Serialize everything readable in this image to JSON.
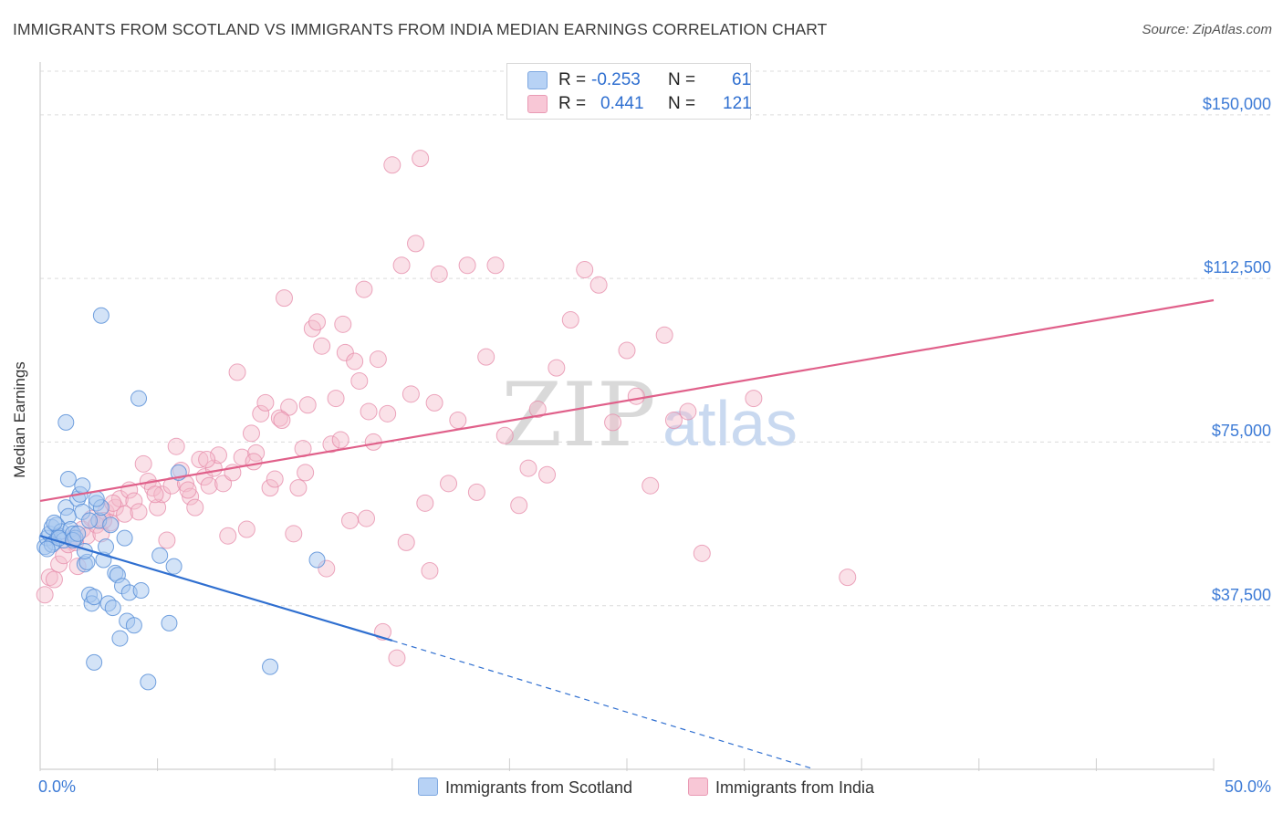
{
  "title": "IMMIGRANTS FROM SCOTLAND VS IMMIGRANTS FROM INDIA MEDIAN EARNINGS CORRELATION CHART",
  "source": "Source: ZipAtlas.com",
  "watermark": {
    "zip": "ZIP",
    "atlas": "atlas"
  },
  "colors": {
    "scotland_fill": "#a8c8f0",
    "scotland_stroke": "#5a90d8",
    "scotland_line": "#2f6fd0",
    "india_fill": "#f5bccd",
    "india_stroke": "#e68aa8",
    "india_line": "#e0608a",
    "tick_text": "#3d7bd6"
  },
  "legend": {
    "rows": [
      {
        "r_label": "R =",
        "r_value": "-0.253",
        "n_label": "N =",
        "n_value": "61"
      },
      {
        "r_label": "R =",
        "r_value": "0.441",
        "n_label": "N =",
        "n_value": "121"
      }
    ]
  },
  "bottom_legend": {
    "scotland": "Immigrants from Scotland",
    "india": "Immigrants from India"
  },
  "chart_data": {
    "type": "scatter",
    "xlabel": "",
    "ylabel": "Median Earnings",
    "xlim": [
      0,
      50
    ],
    "ylim": [
      0,
      160000
    ],
    "x_tick_labels": [
      "0.0%",
      "50.0%"
    ],
    "y_ticks": [
      37500,
      75000,
      112500,
      150000
    ],
    "y_tick_labels": [
      "$37,500",
      "$75,000",
      "$112,500",
      "$150,000"
    ],
    "grid": true,
    "series": [
      {
        "name": "Immigrants from Scotland",
        "r": -0.253,
        "n": 61,
        "trend": {
          "x0": 0,
          "y0": 53500,
          "x1": 15,
          "y1": 29500,
          "dash_to_x": 33,
          "dash_to_y": 0
        },
        "points": [
          [
            0.2,
            51000
          ],
          [
            0.3,
            53000
          ],
          [
            0.4,
            54000
          ],
          [
            0.5,
            55500
          ],
          [
            0.6,
            52000
          ],
          [
            0.7,
            56000
          ],
          [
            0.8,
            53500
          ],
          [
            0.9,
            54500
          ],
          [
            1.0,
            52500
          ],
          [
            1.1,
            60000
          ],
          [
            1.2,
            58000
          ],
          [
            1.3,
            55000
          ],
          [
            1.4,
            54000
          ],
          [
            1.5,
            53000
          ],
          [
            1.6,
            62000
          ],
          [
            1.7,
            63000
          ],
          [
            1.8,
            59000
          ],
          [
            1.9,
            47000
          ],
          [
            2.0,
            47500
          ],
          [
            2.1,
            40000
          ],
          [
            2.2,
            38000
          ],
          [
            2.3,
            39500
          ],
          [
            2.4,
            61000
          ],
          [
            2.5,
            57000
          ],
          [
            2.6,
            60000
          ],
          [
            2.7,
            48000
          ],
          [
            2.8,
            51000
          ],
          [
            2.9,
            38000
          ],
          [
            3.0,
            56000
          ],
          [
            3.1,
            37000
          ],
          [
            3.2,
            45000
          ],
          [
            3.3,
            44500
          ],
          [
            3.4,
            30000
          ],
          [
            3.5,
            42000
          ],
          [
            3.6,
            53000
          ],
          [
            3.7,
            34000
          ],
          [
            3.8,
            40500
          ],
          [
            4.0,
            33000
          ],
          [
            4.3,
            41000
          ],
          [
            4.6,
            20000
          ],
          [
            5.1,
            49000
          ],
          [
            5.5,
            33500
          ],
          [
            5.7,
            46500
          ],
          [
            1.8,
            65000
          ],
          [
            2.4,
            62000
          ],
          [
            1.1,
            79500
          ],
          [
            4.2,
            85000
          ],
          [
            2.6,
            104000
          ],
          [
            5.9,
            68000
          ],
          [
            9.8,
            23500
          ],
          [
            11.8,
            48000
          ],
          [
            0.5,
            51500
          ],
          [
            0.8,
            53000
          ],
          [
            1.4,
            52500
          ],
          [
            1.9,
            50000
          ],
          [
            2.1,
            57000
          ],
          [
            2.3,
            24500
          ],
          [
            0.6,
            56500
          ],
          [
            1.2,
            66500
          ],
          [
            0.3,
            50500
          ],
          [
            1.6,
            54000
          ]
        ]
      },
      {
        "name": "Immigrants from India",
        "r": 0.441,
        "n": 121,
        "trend": {
          "x0": 0,
          "y0": 61500,
          "x1": 50,
          "y1": 107500
        },
        "points": [
          [
            0.2,
            40000
          ],
          [
            0.4,
            44000
          ],
          [
            0.8,
            47000
          ],
          [
            1.0,
            49000
          ],
          [
            1.2,
            51500
          ],
          [
            1.4,
            53000
          ],
          [
            1.6,
            46500
          ],
          [
            1.8,
            55000
          ],
          [
            2.0,
            53500
          ],
          [
            2.2,
            57500
          ],
          [
            2.4,
            56000
          ],
          [
            2.6,
            54000
          ],
          [
            2.8,
            59000
          ],
          [
            3.0,
            56500
          ],
          [
            3.2,
            60000
          ],
          [
            3.4,
            62000
          ],
          [
            3.6,
            58500
          ],
          [
            3.8,
            64000
          ],
          [
            4.0,
            61500
          ],
          [
            4.2,
            59000
          ],
          [
            4.4,
            70000
          ],
          [
            4.6,
            66000
          ],
          [
            4.8,
            64500
          ],
          [
            5.0,
            60000
          ],
          [
            5.2,
            63000
          ],
          [
            5.4,
            52500
          ],
          [
            5.6,
            65000
          ],
          [
            5.8,
            74000
          ],
          [
            6.0,
            68500
          ],
          [
            6.2,
            65500
          ],
          [
            6.4,
            62500
          ],
          [
            6.6,
            60000
          ],
          [
            6.8,
            71000
          ],
          [
            7.0,
            67000
          ],
          [
            7.2,
            65000
          ],
          [
            7.4,
            69000
          ],
          [
            7.6,
            72000
          ],
          [
            7.8,
            65500
          ],
          [
            8.0,
            53500
          ],
          [
            8.2,
            68000
          ],
          [
            8.4,
            91000
          ],
          [
            8.6,
            71500
          ],
          [
            8.8,
            55000
          ],
          [
            9.0,
            77000
          ],
          [
            9.2,
            72500
          ],
          [
            9.4,
            81500
          ],
          [
            9.6,
            84000
          ],
          [
            9.8,
            64500
          ],
          [
            10.0,
            66500
          ],
          [
            10.2,
            80500
          ],
          [
            10.4,
            108000
          ],
          [
            10.6,
            83000
          ],
          [
            10.8,
            54000
          ],
          [
            11.0,
            64500
          ],
          [
            11.2,
            73500
          ],
          [
            11.4,
            83500
          ],
          [
            11.6,
            101000
          ],
          [
            11.8,
            102500
          ],
          [
            12.0,
            97000
          ],
          [
            12.2,
            46000
          ],
          [
            12.4,
            74500
          ],
          [
            12.6,
            85000
          ],
          [
            12.8,
            75500
          ],
          [
            13.0,
            95500
          ],
          [
            13.2,
            57000
          ],
          [
            13.4,
            93500
          ],
          [
            13.6,
            89000
          ],
          [
            13.8,
            110000
          ],
          [
            14.0,
            82000
          ],
          [
            14.2,
            75000
          ],
          [
            14.4,
            94000
          ],
          [
            14.6,
            31500
          ],
          [
            14.8,
            81500
          ],
          [
            15.0,
            138500
          ],
          [
            15.2,
            25500
          ],
          [
            15.4,
            115500
          ],
          [
            15.6,
            52000
          ],
          [
            15.8,
            86000
          ],
          [
            16.0,
            120500
          ],
          [
            16.2,
            140000
          ],
          [
            16.4,
            61000
          ],
          [
            16.8,
            84000
          ],
          [
            17.0,
            113500
          ],
          [
            17.4,
            65500
          ],
          [
            17.8,
            80000
          ],
          [
            18.2,
            115500
          ],
          [
            18.6,
            63500
          ],
          [
            19.0,
            94500
          ],
          [
            19.4,
            115500
          ],
          [
            19.8,
            76500
          ],
          [
            20.4,
            60500
          ],
          [
            20.8,
            69000
          ],
          [
            21.2,
            82500
          ],
          [
            21.6,
            67500
          ],
          [
            22.0,
            92000
          ],
          [
            22.6,
            103000
          ],
          [
            23.2,
            114500
          ],
          [
            23.8,
            111000
          ],
          [
            24.4,
            79500
          ],
          [
            25.0,
            96000
          ],
          [
            25.4,
            85500
          ],
          [
            26.0,
            65000
          ],
          [
            26.6,
            99500
          ],
          [
            27.0,
            80000
          ],
          [
            27.6,
            82000
          ],
          [
            28.2,
            49500
          ],
          [
            30.4,
            85000
          ],
          [
            34.4,
            44000
          ],
          [
            0.6,
            43500
          ],
          [
            1.5,
            52000
          ],
          [
            2.7,
            57000
          ],
          [
            3.1,
            61000
          ],
          [
            4.9,
            63000
          ],
          [
            6.3,
            64000
          ],
          [
            7.1,
            71000
          ],
          [
            9.1,
            70500
          ],
          [
            10.3,
            80000
          ],
          [
            11.3,
            68000
          ],
          [
            12.9,
            102000
          ],
          [
            13.9,
            57500
          ],
          [
            16.6,
            45500
          ]
        ]
      }
    ]
  }
}
